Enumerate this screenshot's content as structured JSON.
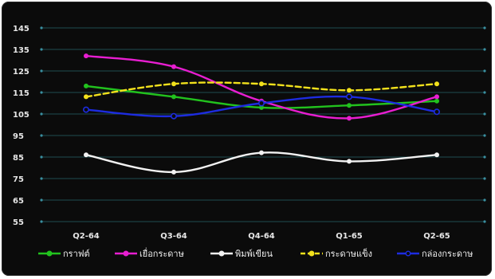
{
  "chart_data": {
    "type": "line",
    "title": "",
    "xlabel": "",
    "ylabel": "",
    "categories": [
      "Q2-64",
      "Q3-64",
      "Q4-64",
      "Q1-65",
      "Q2-65"
    ],
    "y_ticks": [
      145,
      135,
      125,
      115,
      105,
      95,
      85,
      75,
      65,
      55
    ],
    "ylim": [
      55,
      145
    ],
    "grid": "horizontal",
    "legend_position": "bottom",
    "series": [
      {
        "name": "กราฟต์",
        "color": "#22c21e",
        "dash": "solid",
        "values": [
          118,
          113,
          108,
          109,
          111
        ]
      },
      {
        "name": "เยื่อกระดาษ",
        "color": "#e81ed1",
        "dash": "solid",
        "values": [
          132,
          127,
          111,
          103,
          113
        ]
      },
      {
        "name": "พิมพ์เขียน",
        "color": "#f2f2f2",
        "dash": "solid",
        "values": [
          86,
          78,
          87,
          83,
          86
        ]
      },
      {
        "name": "กระดาษแข็ง",
        "color": "#f2e11c",
        "dash": "dashed",
        "values": [
          113,
          119,
          119,
          116,
          119
        ]
      },
      {
        "name": "กล่องกระดาษ",
        "color": "#1d2ce0",
        "dash": "solid",
        "values": [
          107,
          104,
          110,
          113,
          106
        ]
      }
    ]
  }
}
